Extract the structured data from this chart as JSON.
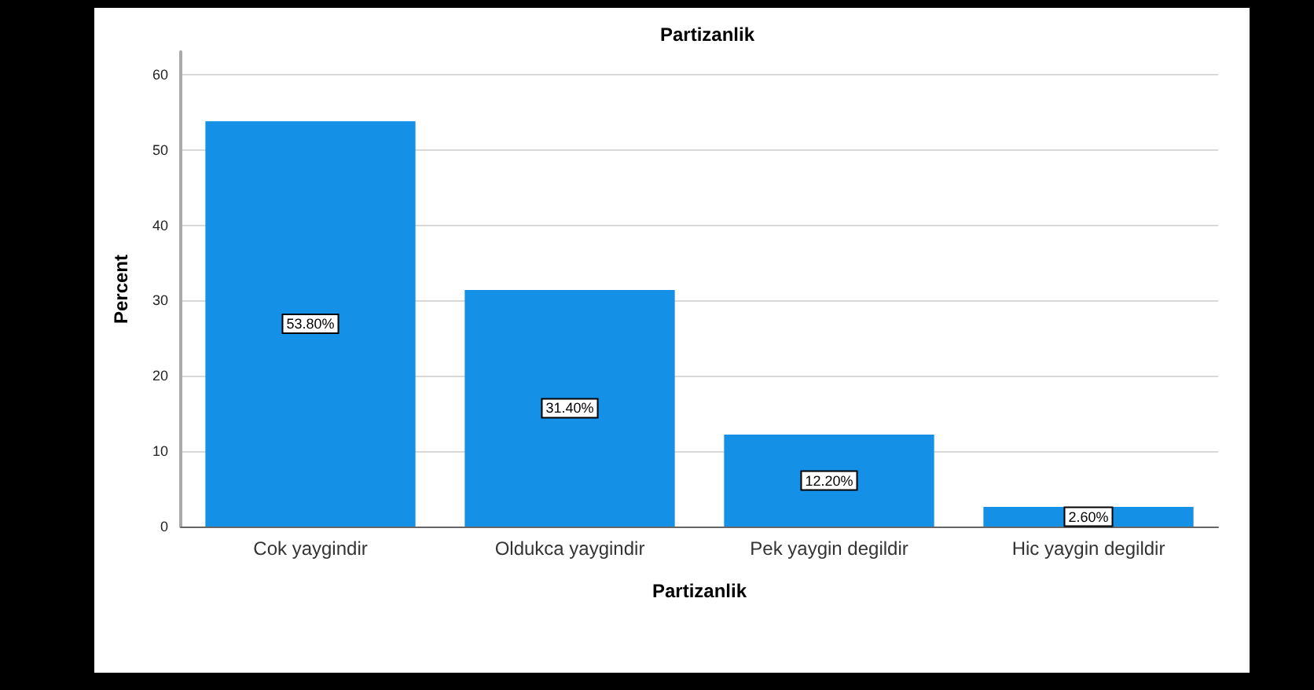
{
  "chart_data": {
    "type": "bar",
    "title": "Partizanlik",
    "xlabel": "Partizanlik",
    "ylabel": "Percent",
    "categories": [
      "Cok yaygindir",
      "Oldukca yaygindir",
      "Pek yaygin degildir",
      "Hic yaygin degildir"
    ],
    "values": [
      53.8,
      31.4,
      12.2,
      2.6
    ],
    "color": "#1490e6",
    "value_labels": [
      "53.80%",
      "31.40%",
      "12.20%",
      "2.60%"
    ],
    "ylim": [
      0,
      63
    ],
    "yticks": [
      0,
      10,
      20,
      30,
      40,
      50,
      60
    ],
    "grid": "y"
  }
}
